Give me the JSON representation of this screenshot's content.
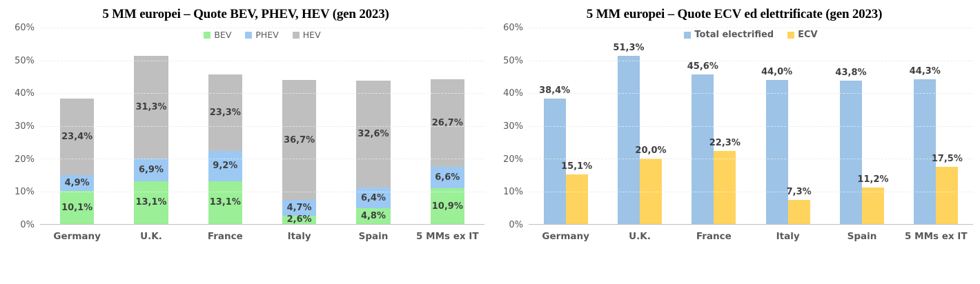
{
  "chart_data": [
    {
      "type": "bar",
      "variant": "stacked",
      "title": "5 MM europei – Quote BEV, PHEV, HEV (gen 2023)",
      "categories": [
        "Germany",
        "U.K.",
        "France",
        "Italy",
        "Spain",
        "5 MMs ex IT"
      ],
      "series": [
        {
          "name": "BEV",
          "color": "#9BEF97",
          "values": [
            10.1,
            13.1,
            13.1,
            2.6,
            4.8,
            10.9
          ],
          "labels": [
            "10,1%",
            "13,1%",
            "13,1%",
            "2,6%",
            "4,8%",
            "10,9%"
          ]
        },
        {
          "name": "PHEV",
          "color": "#9CC9F3",
          "values": [
            4.9,
            6.9,
            9.2,
            4.7,
            6.4,
            6.6
          ],
          "labels": [
            "4,9%",
            "6,9%",
            "9,2%",
            "4,7%",
            "6,4%",
            "6,6%"
          ]
        },
        {
          "name": "HEV",
          "color": "#BFBFBF",
          "values": [
            23.4,
            31.3,
            23.3,
            36.7,
            32.6,
            26.7
          ],
          "labels": [
            "23,4%",
            "31,3%",
            "23,3%",
            "36,7%",
            "32,6%",
            "26,7%"
          ]
        }
      ],
      "xlabel": "",
      "ylabel": "",
      "ylim": [
        0,
        60
      ],
      "yticks": [
        "0%",
        "10%",
        "20%",
        "30%",
        "40%",
        "50%",
        "60%"
      ],
      "grid": true,
      "gridline_color": "#D9D9D9",
      "axis_line_color": "#BFBFBF",
      "legend_position": "top-center",
      "legend_bold": false
    },
    {
      "type": "bar",
      "variant": "grouped",
      "title": "5 MM europei – Quote ECV ed elettrificate (gen 2023)",
      "categories": [
        "Germany",
        "U.K.",
        "France",
        "Italy",
        "Spain",
        "5 MMs ex IT"
      ],
      "series": [
        {
          "name": "Total electrified",
          "color": "#9DC3E6",
          "values": [
            38.4,
            51.3,
            45.6,
            44.0,
            43.8,
            44.3
          ],
          "labels": [
            "38,4%",
            "51,3%",
            "45,6%",
            "44,0%",
            "43,8%",
            "44,3%"
          ]
        },
        {
          "name": "ECV",
          "color": "#FFD45E",
          "values": [
            15.1,
            20.0,
            22.3,
            7.3,
            11.2,
            17.5
          ],
          "labels": [
            "15,1%",
            "20,0%",
            "22,3%",
            "7,3%",
            "11,2%",
            "17,5%"
          ]
        }
      ],
      "xlabel": "",
      "ylabel": "",
      "ylim": [
        0,
        60
      ],
      "yticks": [
        "0%",
        "10%",
        "20%",
        "30%",
        "40%",
        "50%",
        "60%"
      ],
      "grid": true,
      "gridline_color": "#D9D9D9",
      "axis_line_color": "#BFBFBF",
      "legend_position": "top-center",
      "legend_bold": true
    }
  ],
  "text_colors": {
    "title": "#000000",
    "axis_ticks": "#595959",
    "category_labels": "#595959",
    "value_labels": "#3F3F3F",
    "legend_text": "#595959"
  }
}
